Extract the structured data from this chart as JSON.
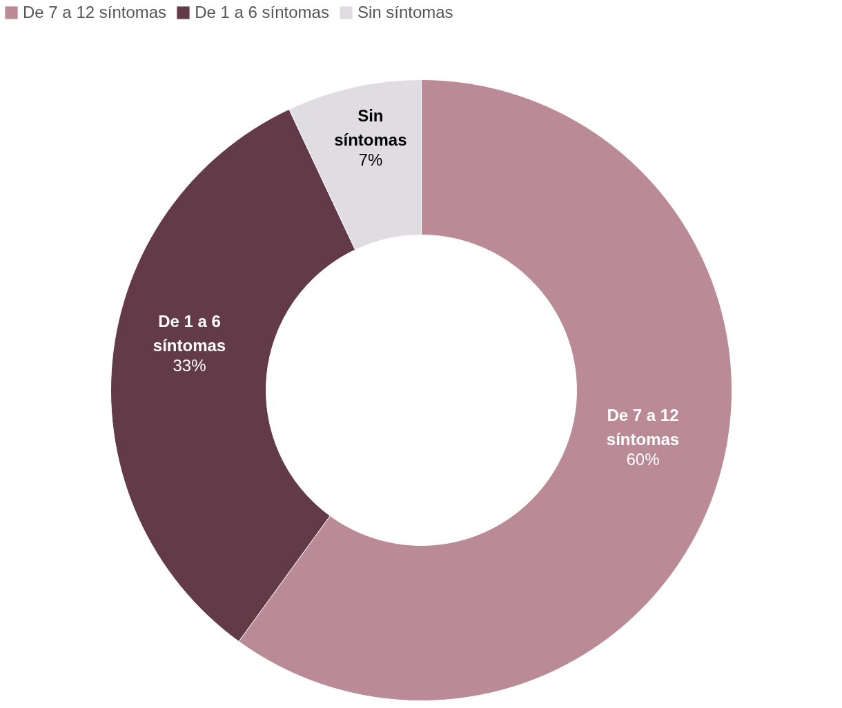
{
  "chart_data": {
    "type": "donut",
    "categories": [
      "De 7 a 12 síntomas",
      "De 1 a 6 síntomas",
      "Sin síntomas"
    ],
    "values": [
      60,
      33,
      7
    ],
    "value_labels": [
      "60%",
      "33%",
      "7%"
    ],
    "colors": [
      "#ba8a97",
      "#623a48",
      "#e0dde2"
    ],
    "legend": "top left"
  }
}
